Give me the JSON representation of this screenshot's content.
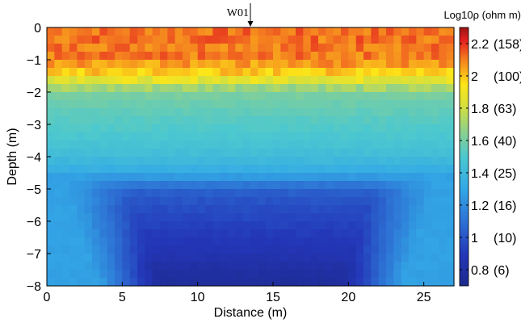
{
  "chart_data": {
    "type": "heatmap",
    "title": "",
    "xlabel": "Distance (m)",
    "ylabel": "Depth (m)",
    "xlim": [
      0,
      27
    ],
    "ylim": [
      -8,
      0
    ],
    "x_ticks": [
      0,
      5,
      10,
      15,
      20,
      25
    ],
    "y_ticks": [
      0,
      -1,
      -2,
      -3,
      -4,
      -5,
      -6,
      -7,
      -8
    ],
    "colorbar": {
      "title": "Log10ρ (ohm m)",
      "range": [
        0.7,
        2.3
      ],
      "ticks": [
        {
          "value": 2.2,
          "label": "2.2",
          "resistivity": "(158)"
        },
        {
          "value": 2.0,
          "label": "2",
          "resistivity": "(100)"
        },
        {
          "value": 1.8,
          "label": "1.8",
          "resistivity": "(63)"
        },
        {
          "value": 1.6,
          "label": "1.6",
          "resistivity": "(40)"
        },
        {
          "value": 1.4,
          "label": "1.4",
          "resistivity": "(25)"
        },
        {
          "value": 1.2,
          "label": "1.2",
          "resistivity": "(16)"
        },
        {
          "value": 1.0,
          "label": "1",
          "resistivity": "(10)"
        },
        {
          "value": 0.8,
          "label": "0.8",
          "resistivity": "(6)"
        }
      ]
    },
    "annotation": {
      "label": "W01",
      "x": 13.5
    },
    "depth_profile": [
      {
        "depth": 0.0,
        "log10_rho": 2.12
      },
      {
        "depth": -0.5,
        "log10_rho": 2.12
      },
      {
        "depth": -1.0,
        "log10_rho": 2.1
      },
      {
        "depth": -1.5,
        "log10_rho": 1.95
      },
      {
        "depth": -2.0,
        "log10_rho": 1.62
      },
      {
        "depth": -2.5,
        "log10_rho": 1.56
      },
      {
        "depth": -3.0,
        "log10_rho": 1.52
      },
      {
        "depth": -3.5,
        "log10_rho": 1.48
      },
      {
        "depth": -4.0,
        "log10_rho": 1.42
      },
      {
        "depth": -4.5,
        "log10_rho": 1.32
      },
      {
        "depth": -5.0,
        "log10_rho": 1.05
      },
      {
        "depth": -5.5,
        "log10_rho": 0.98
      },
      {
        "depth": -6.0,
        "log10_rho": 0.94
      },
      {
        "depth": -6.5,
        "log10_rho": 0.9
      },
      {
        "depth": -7.0,
        "log10_rho": 0.86
      },
      {
        "depth": -7.5,
        "log10_rho": 0.8
      },
      {
        "depth": -8.0,
        "log10_rho": 0.76
      }
    ],
    "edge_log10_rho": 1.28
  }
}
